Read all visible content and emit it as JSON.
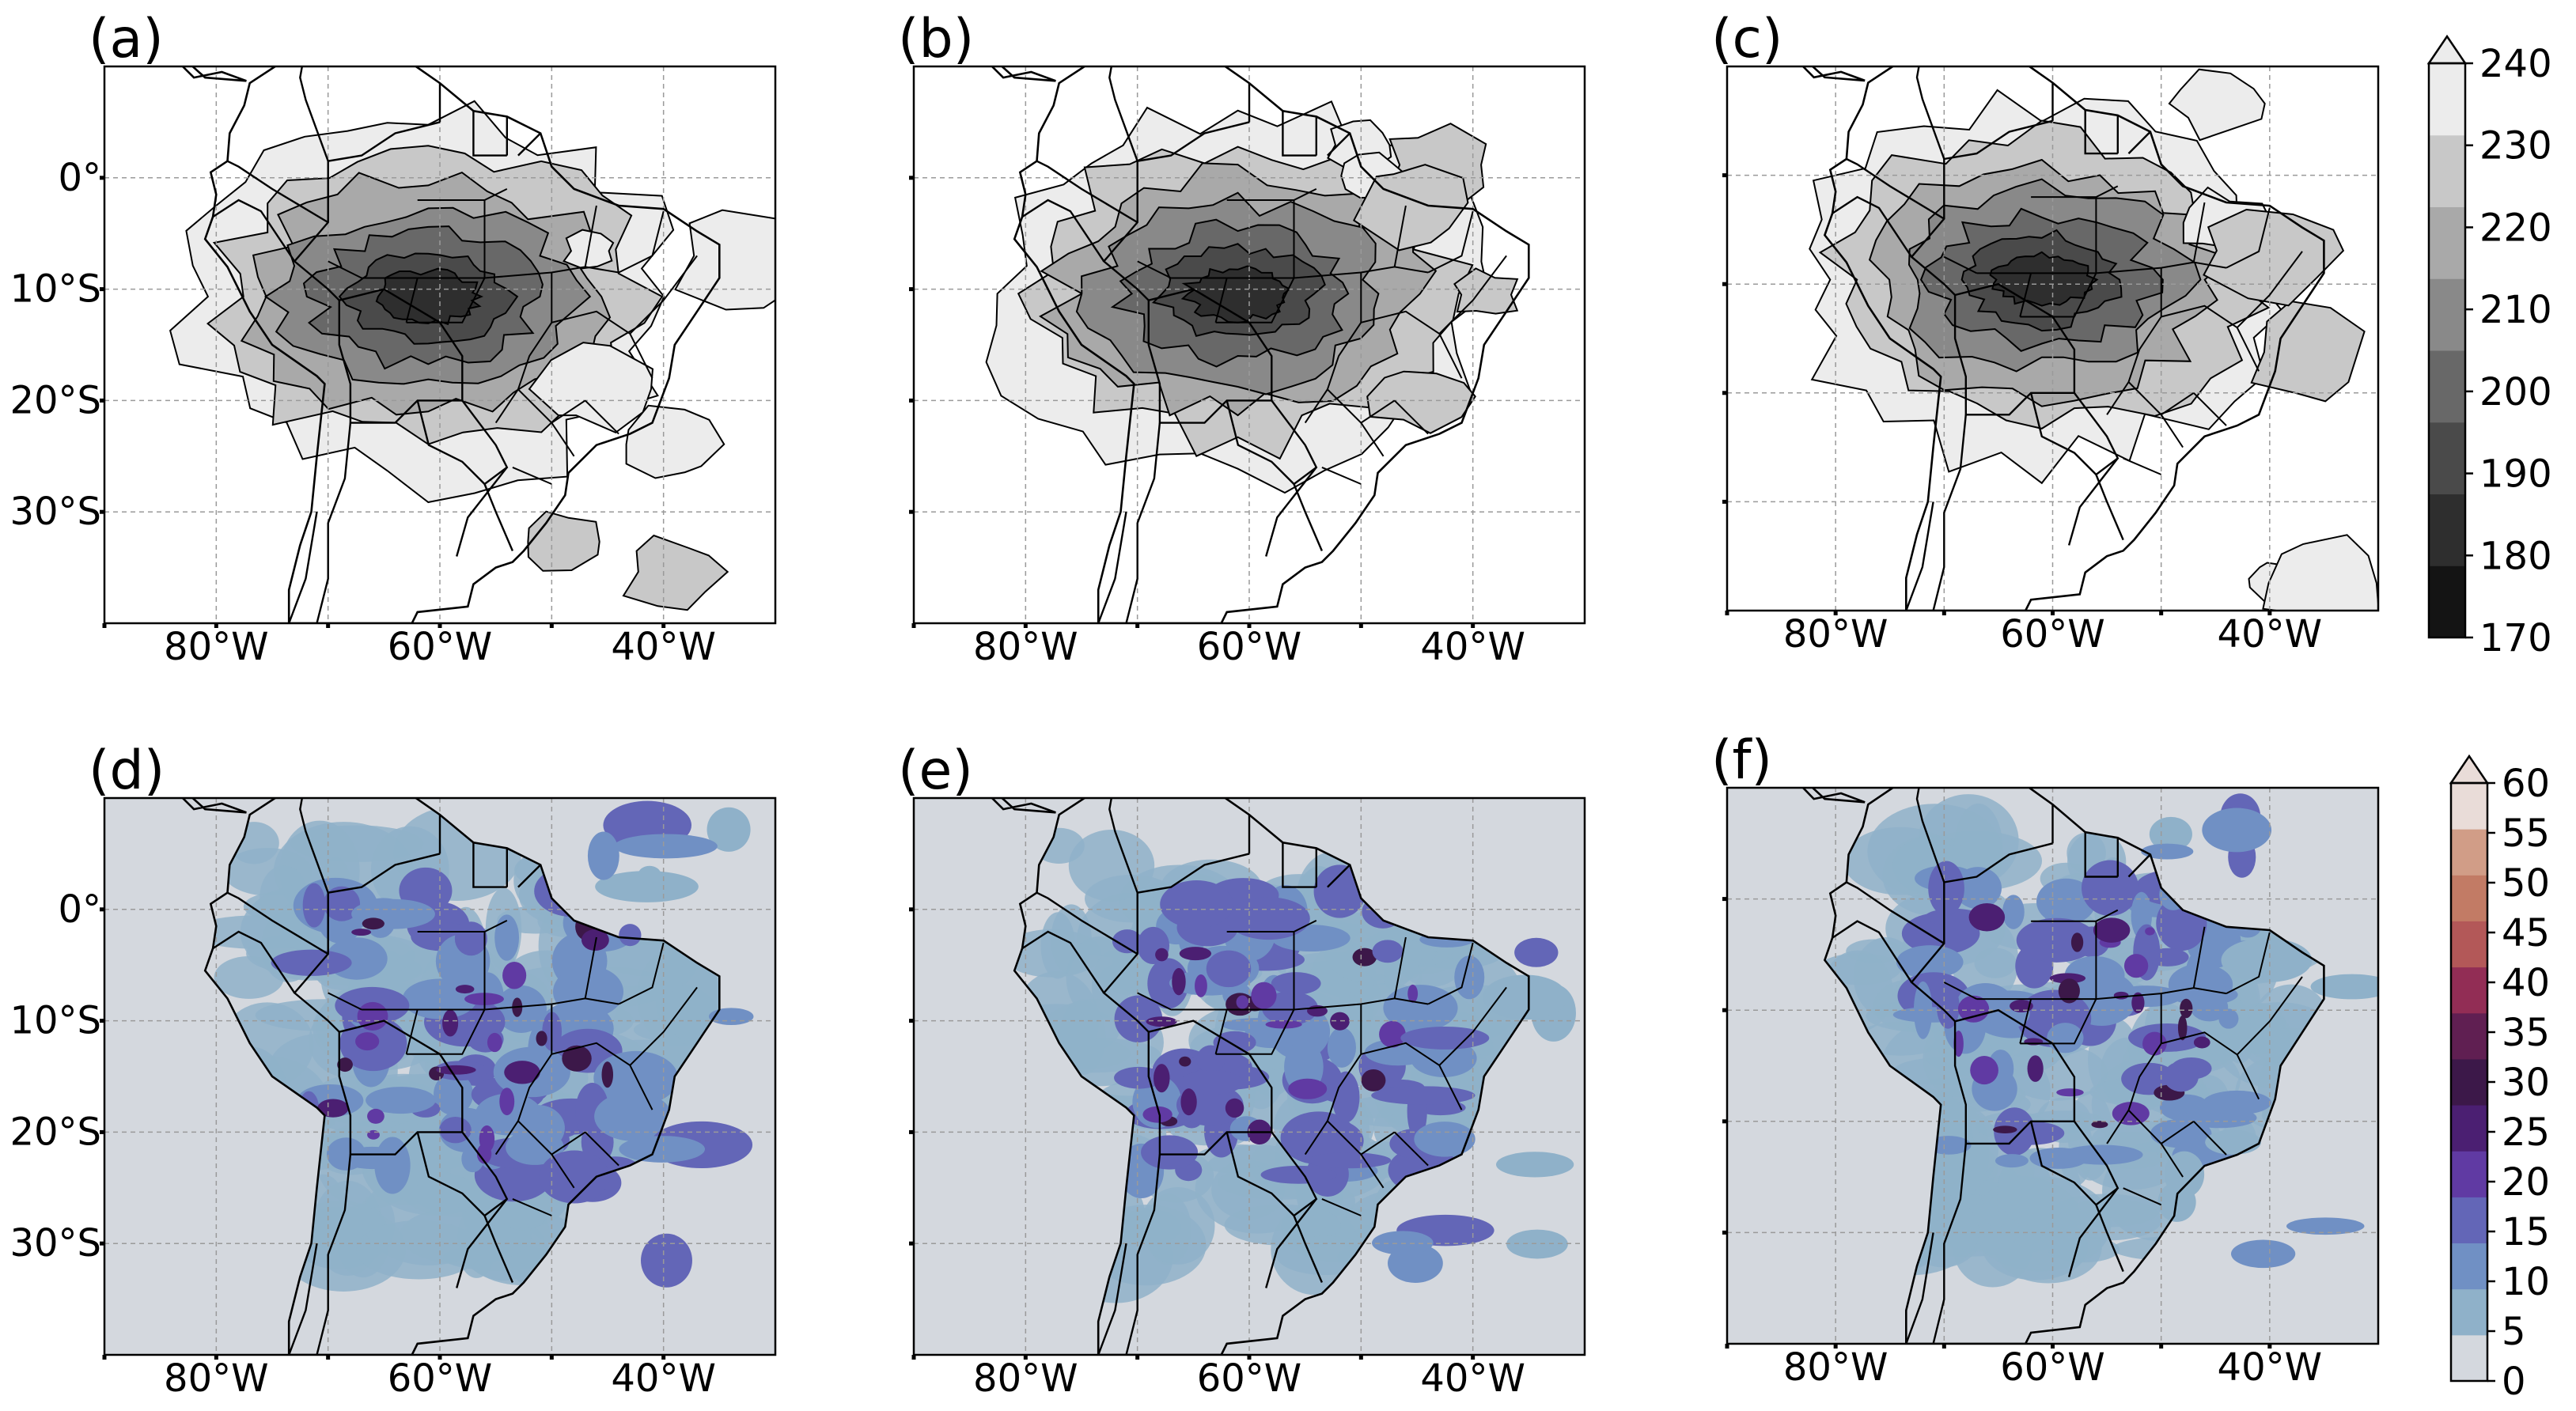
{
  "panels": [
    {
      "label": "(a)",
      "field": "tb",
      "seed": 11,
      "yticks": true
    },
    {
      "label": "(b)",
      "field": "tb",
      "seed": 23,
      "yticks": false
    },
    {
      "label": "(c)",
      "field": "tb",
      "seed": 37,
      "yticks": false
    },
    {
      "label": "(d)",
      "field": "precip",
      "seed": 41,
      "yticks": true
    },
    {
      "label": "(e)",
      "field": "precip",
      "seed": 53,
      "yticks": false
    },
    {
      "label": "(f)",
      "field": "precip",
      "seed": 67,
      "yticks": false
    }
  ],
  "axes": {
    "lon_range": [
      -90,
      -30
    ],
    "lat_range": [
      -40,
      10
    ],
    "x_ticks": [
      "80°W",
      "60°W",
      "40°W"
    ],
    "y_ticks": [
      "0°",
      "10°S",
      "20°S",
      "30°S"
    ]
  },
  "colorbar_top": {
    "levels": [
      "170",
      "180",
      "190",
      "200",
      "210",
      "220",
      "230",
      "240"
    ],
    "colors": [
      "#141414",
      "#2e2e2e",
      "#4a4a4a",
      "#686868",
      "#898989",
      "#a9a9a9",
      "#c8c8c8",
      "#ececec"
    ],
    "extend": "max"
  },
  "colorbar_bottom": {
    "levels": [
      "0",
      "5",
      "10",
      "15",
      "20",
      "25",
      "30",
      "35",
      "40",
      "45",
      "50",
      "55",
      "60"
    ],
    "colors": [
      "#d4d8de",
      "#8fb1c9",
      "#7090c4",
      "#6366b7",
      "#603aa3",
      "#4b1f72",
      "#3c1849",
      "#601f52",
      "#922d55",
      "#b35858",
      "#c27b65",
      "#d19d87",
      "#e9dcd8"
    ],
    "extend": "max"
  }
}
